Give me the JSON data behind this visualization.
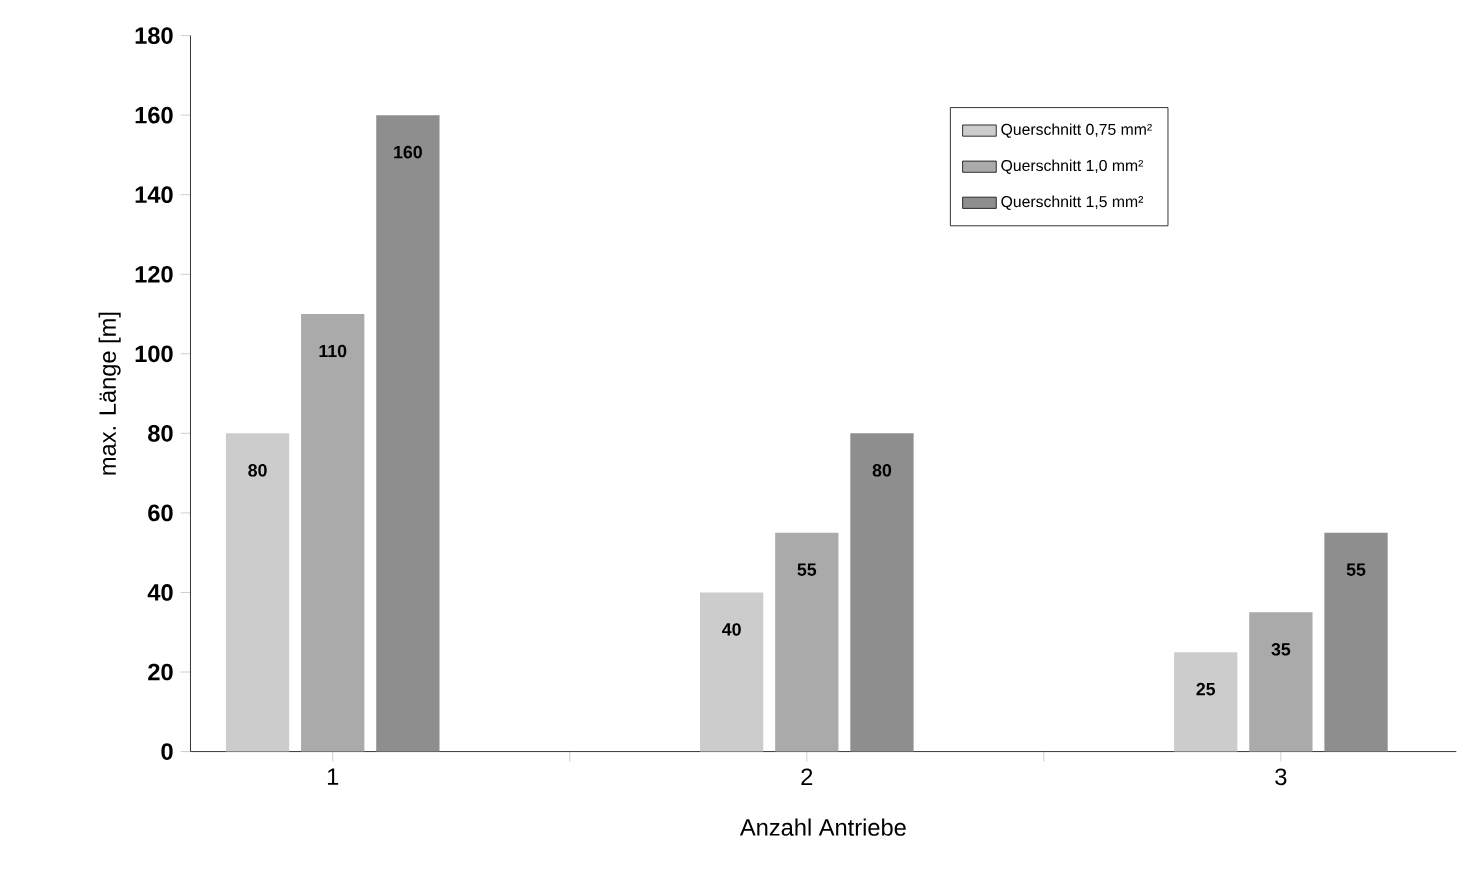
{
  "chart_data": {
    "type": "bar",
    "xlabel": "Anzahl Antriebe",
    "ylabel": "max. Länge [m]",
    "categories": [
      "1",
      "2",
      "3"
    ],
    "series": [
      {
        "name": "Querschnitt 0,75 mm²",
        "color": "#cccccc",
        "values": [
          80,
          40,
          25
        ]
      },
      {
        "name": "Querschnitt 1,0 mm²",
        "color": "#aaaaaa",
        "values": [
          110,
          55,
          35
        ]
      },
      {
        "name": "Querschnitt 1,5 mm²",
        "color": "#8e8e8e",
        "values": [
          160,
          80,
          55
        ]
      }
    ],
    "ylim": [
      0,
      180
    ],
    "yticks": [
      0,
      20,
      40,
      60,
      80,
      100,
      120,
      140,
      160,
      180
    ],
    "data_labels": true,
    "legend": "top right",
    "grid": false
  }
}
